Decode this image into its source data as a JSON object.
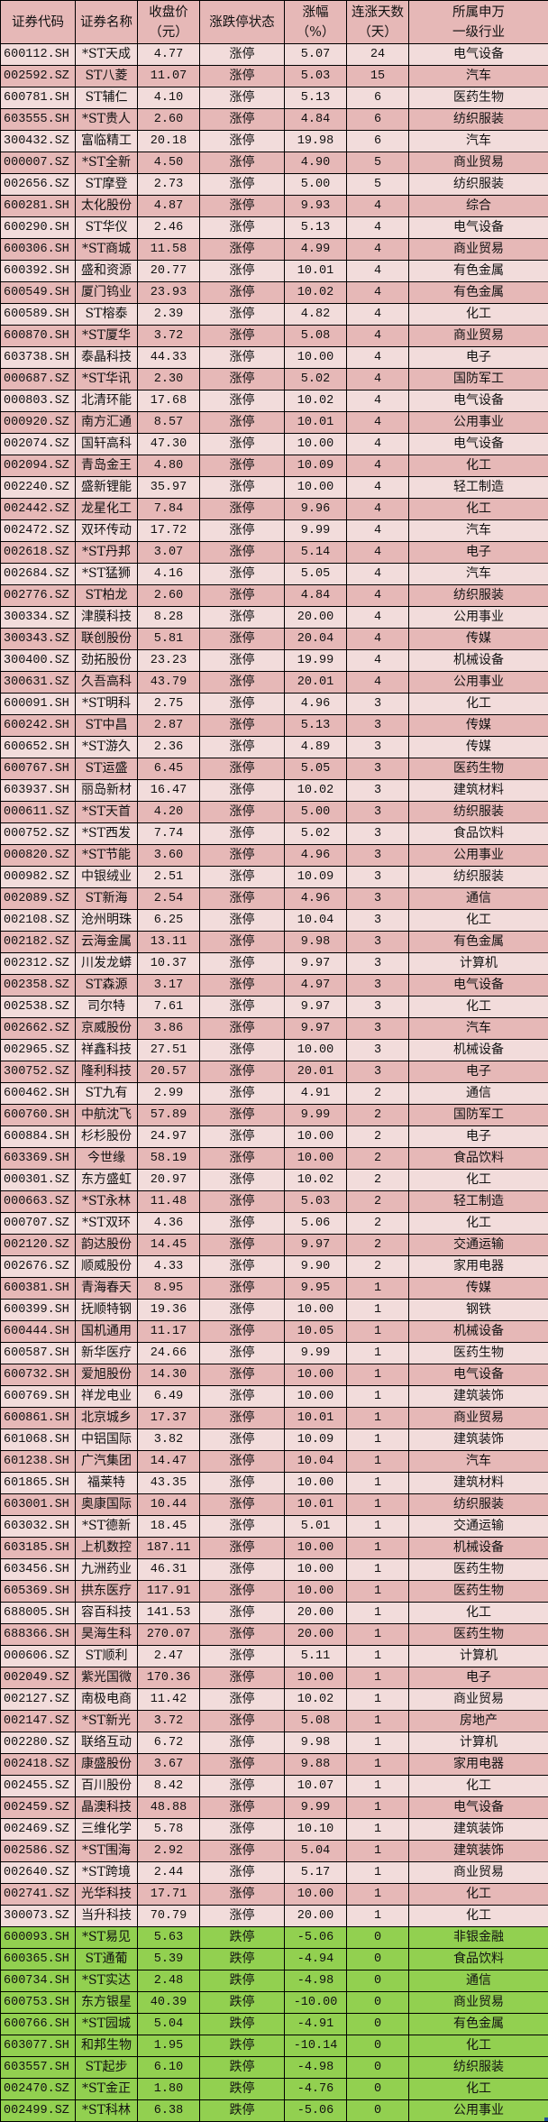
{
  "colors": {
    "header_bg": "#e6b8b7",
    "row_light": "#f2dcdb",
    "row_dark": "#e6b8b7",
    "limit_down": "#92d050"
  },
  "table": {
    "headers": [
      [
        "证券代码"
      ],
      [
        "证券名称"
      ],
      [
        "收盘价",
        "（元）"
      ],
      [
        "涨跌停状态"
      ],
      [
        "涨幅",
        "（%）"
      ],
      [
        "连涨天数",
        "（天）"
      ],
      [
        "所属申万",
        "一级行业"
      ]
    ],
    "rows": [
      [
        "600112.SH",
        "*ST天成",
        "4.77",
        "涨停",
        "5.07",
        "24",
        "电气设备"
      ],
      [
        "002592.SZ",
        "ST八菱",
        "11.07",
        "涨停",
        "5.03",
        "15",
        "汽车"
      ],
      [
        "600781.SH",
        "ST辅仁",
        "4.10",
        "涨停",
        "5.13",
        "6",
        "医药生物"
      ],
      [
        "603555.SH",
        "*ST贵人",
        "2.60",
        "涨停",
        "4.84",
        "6",
        "纺织服装"
      ],
      [
        "300432.SZ",
        "富临精工",
        "20.18",
        "涨停",
        "19.98",
        "6",
        "汽车"
      ],
      [
        "000007.SZ",
        "*ST全新",
        "4.50",
        "涨停",
        "4.90",
        "5",
        "商业贸易"
      ],
      [
        "002656.SZ",
        "ST摩登",
        "2.73",
        "涨停",
        "5.00",
        "5",
        "纺织服装"
      ],
      [
        "600281.SH",
        "太化股份",
        "4.87",
        "涨停",
        "9.93",
        "4",
        "综合"
      ],
      [
        "600290.SH",
        "ST华仪",
        "2.46",
        "涨停",
        "5.13",
        "4",
        "电气设备"
      ],
      [
        "600306.SH",
        "*ST商城",
        "11.58",
        "涨停",
        "4.99",
        "4",
        "商业贸易"
      ],
      [
        "600392.SH",
        "盛和资源",
        "20.77",
        "涨停",
        "10.01",
        "4",
        "有色金属"
      ],
      [
        "600549.SH",
        "厦门钨业",
        "23.93",
        "涨停",
        "10.02",
        "4",
        "有色金属"
      ],
      [
        "600589.SH",
        "ST榕泰",
        "2.39",
        "涨停",
        "4.82",
        "4",
        "化工"
      ],
      [
        "600870.SH",
        "*ST厦华",
        "3.72",
        "涨停",
        "5.08",
        "4",
        "商业贸易"
      ],
      [
        "603738.SH",
        "泰晶科技",
        "44.33",
        "涨停",
        "10.00",
        "4",
        "电子"
      ],
      [
        "000687.SZ",
        "*ST华讯",
        "2.30",
        "涨停",
        "5.02",
        "4",
        "国防军工"
      ],
      [
        "000803.SZ",
        "北清环能",
        "17.68",
        "涨停",
        "10.02",
        "4",
        "电气设备"
      ],
      [
        "000920.SZ",
        "南方汇通",
        "8.57",
        "涨停",
        "10.01",
        "4",
        "公用事业"
      ],
      [
        "002074.SZ",
        "国轩高科",
        "47.30",
        "涨停",
        "10.00",
        "4",
        "电气设备"
      ],
      [
        "002094.SZ",
        "青岛金王",
        "4.80",
        "涨停",
        "10.09",
        "4",
        "化工"
      ],
      [
        "002240.SZ",
        "盛新锂能",
        "35.97",
        "涨停",
        "10.00",
        "4",
        "轻工制造"
      ],
      [
        "002442.SZ",
        "龙星化工",
        "7.84",
        "涨停",
        "9.96",
        "4",
        "化工"
      ],
      [
        "002472.SZ",
        "双环传动",
        "17.72",
        "涨停",
        "9.99",
        "4",
        "汽车"
      ],
      [
        "002618.SZ",
        "*ST丹邦",
        "3.07",
        "涨停",
        "5.14",
        "4",
        "电子"
      ],
      [
        "002684.SZ",
        "*ST猛狮",
        "4.16",
        "涨停",
        "5.05",
        "4",
        "汽车"
      ],
      [
        "002776.SZ",
        "ST柏龙",
        "2.60",
        "涨停",
        "4.84",
        "4",
        "纺织服装"
      ],
      [
        "300334.SZ",
        "津膜科技",
        "8.28",
        "涨停",
        "20.00",
        "4",
        "公用事业"
      ],
      [
        "300343.SZ",
        "联创股份",
        "5.81",
        "涨停",
        "20.04",
        "4",
        "传媒"
      ],
      [
        "300400.SZ",
        "劲拓股份",
        "23.23",
        "涨停",
        "19.99",
        "4",
        "机械设备"
      ],
      [
        "300631.SZ",
        "久吾高科",
        "43.79",
        "涨停",
        "20.01",
        "4",
        "公用事业"
      ],
      [
        "600091.SH",
        "*ST明科",
        "2.75",
        "涨停",
        "4.96",
        "3",
        "化工"
      ],
      [
        "600242.SH",
        "ST中昌",
        "2.87",
        "涨停",
        "5.13",
        "3",
        "传媒"
      ],
      [
        "600652.SH",
        "*ST游久",
        "2.36",
        "涨停",
        "4.89",
        "3",
        "传媒"
      ],
      [
        "600767.SH",
        "ST运盛",
        "6.45",
        "涨停",
        "5.05",
        "3",
        "医药生物"
      ],
      [
        "603937.SH",
        "丽岛新材",
        "16.47",
        "涨停",
        "10.02",
        "3",
        "建筑材料"
      ],
      [
        "000611.SZ",
        "*ST天首",
        "4.20",
        "涨停",
        "5.00",
        "3",
        "纺织服装"
      ],
      [
        "000752.SZ",
        "*ST西发",
        "7.74",
        "涨停",
        "5.02",
        "3",
        "食品饮料"
      ],
      [
        "000820.SZ",
        "*ST节能",
        "3.60",
        "涨停",
        "4.96",
        "3",
        "公用事业"
      ],
      [
        "000982.SZ",
        "中银绒业",
        "2.51",
        "涨停",
        "10.09",
        "3",
        "纺织服装"
      ],
      [
        "002089.SZ",
        "ST新海",
        "2.54",
        "涨停",
        "4.96",
        "3",
        "通信"
      ],
      [
        "002108.SZ",
        "沧州明珠",
        "6.25",
        "涨停",
        "10.04",
        "3",
        "化工"
      ],
      [
        "002182.SZ",
        "云海金属",
        "13.11",
        "涨停",
        "9.98",
        "3",
        "有色金属"
      ],
      [
        "002312.SZ",
        "川发龙蟒",
        "10.37",
        "涨停",
        "9.97",
        "3",
        "计算机"
      ],
      [
        "002358.SZ",
        "ST森源",
        "3.17",
        "涨停",
        "4.97",
        "3",
        "电气设备"
      ],
      [
        "002538.SZ",
        "司尔特",
        "7.61",
        "涨停",
        "9.97",
        "3",
        "化工"
      ],
      [
        "002662.SZ",
        "京威股份",
        "3.86",
        "涨停",
        "9.97",
        "3",
        "汽车"
      ],
      [
        "002965.SZ",
        "祥鑫科技",
        "27.51",
        "涨停",
        "10.00",
        "3",
        "机械设备"
      ],
      [
        "300752.SZ",
        "隆利科技",
        "20.57",
        "涨停",
        "20.01",
        "3",
        "电子"
      ],
      [
        "600462.SH",
        "ST九有",
        "2.99",
        "涨停",
        "4.91",
        "2",
        "通信"
      ],
      [
        "600760.SH",
        "中航沈飞",
        "57.89",
        "涨停",
        "9.99",
        "2",
        "国防军工"
      ],
      [
        "600884.SH",
        "杉杉股份",
        "24.97",
        "涨停",
        "10.00",
        "2",
        "电子"
      ],
      [
        "603369.SH",
        "今世缘",
        "58.19",
        "涨停",
        "10.00",
        "2",
        "食品饮料"
      ],
      [
        "000301.SZ",
        "东方盛虹",
        "20.97",
        "涨停",
        "10.02",
        "2",
        "化工"
      ],
      [
        "000663.SZ",
        "*ST永林",
        "11.48",
        "涨停",
        "5.03",
        "2",
        "轻工制造"
      ],
      [
        "000707.SZ",
        "*ST双环",
        "4.36",
        "涨停",
        "5.06",
        "2",
        "化工"
      ],
      [
        "002120.SZ",
        "韵达股份",
        "14.45",
        "涨停",
        "9.97",
        "2",
        "交通运输"
      ],
      [
        "002676.SZ",
        "顺威股份",
        "4.33",
        "涨停",
        "9.90",
        "2",
        "家用电器"
      ],
      [
        "600381.SH",
        "青海春天",
        "8.95",
        "涨停",
        "9.95",
        "1",
        "传媒"
      ],
      [
        "600399.SH",
        "抚顺特钢",
        "19.36",
        "涨停",
        "10.00",
        "1",
        "钢铁"
      ],
      [
        "600444.SH",
        "国机通用",
        "11.17",
        "涨停",
        "10.05",
        "1",
        "机械设备"
      ],
      [
        "600587.SH",
        "新华医疗",
        "24.66",
        "涨停",
        "9.99",
        "1",
        "医药生物"
      ],
      [
        "600732.SH",
        "爱旭股份",
        "14.30",
        "涨停",
        "10.00",
        "1",
        "电气设备"
      ],
      [
        "600769.SH",
        "祥龙电业",
        "6.49",
        "涨停",
        "10.00",
        "1",
        "建筑装饰"
      ],
      [
        "600861.SH",
        "北京城乡",
        "17.37",
        "涨停",
        "10.01",
        "1",
        "商业贸易"
      ],
      [
        "601068.SH",
        "中铝国际",
        "3.82",
        "涨停",
        "10.09",
        "1",
        "建筑装饰"
      ],
      [
        "601238.SH",
        "广汽集团",
        "14.47",
        "涨停",
        "10.04",
        "1",
        "汽车"
      ],
      [
        "601865.SH",
        "福莱特",
        "43.35",
        "涨停",
        "10.00",
        "1",
        "建筑材料"
      ],
      [
        "603001.SH",
        "奥康国际",
        "10.44",
        "涨停",
        "10.01",
        "1",
        "纺织服装"
      ],
      [
        "603032.SH",
        "*ST德新",
        "18.45",
        "涨停",
        "5.01",
        "1",
        "交通运输"
      ],
      [
        "603185.SH",
        "上机数控",
        "187.11",
        "涨停",
        "10.00",
        "1",
        "机械设备"
      ],
      [
        "603456.SH",
        "九洲药业",
        "46.31",
        "涨停",
        "10.00",
        "1",
        "医药生物"
      ],
      [
        "605369.SH",
        "拱东医疗",
        "117.91",
        "涨停",
        "10.00",
        "1",
        "医药生物"
      ],
      [
        "688005.SH",
        "容百科技",
        "141.53",
        "涨停",
        "20.00",
        "1",
        "化工"
      ],
      [
        "688366.SH",
        "昊海生科",
        "270.07",
        "涨停",
        "20.00",
        "1",
        "医药生物"
      ],
      [
        "000606.SZ",
        "ST顺利",
        "2.47",
        "涨停",
        "5.11",
        "1",
        "计算机"
      ],
      [
        "002049.SZ",
        "紫光国微",
        "170.36",
        "涨停",
        "10.00",
        "1",
        "电子"
      ],
      [
        "002127.SZ",
        "南极电商",
        "11.42",
        "涨停",
        "10.02",
        "1",
        "商业贸易"
      ],
      [
        "002147.SZ",
        "*ST新光",
        "3.72",
        "涨停",
        "5.08",
        "1",
        "房地产"
      ],
      [
        "002280.SZ",
        "联络互动",
        "6.72",
        "涨停",
        "9.98",
        "1",
        "计算机"
      ],
      [
        "002418.SZ",
        "康盛股份",
        "3.67",
        "涨停",
        "9.88",
        "1",
        "家用电器"
      ],
      [
        "002455.SZ",
        "百川股份",
        "8.42",
        "涨停",
        "10.07",
        "1",
        "化工"
      ],
      [
        "002459.SZ",
        "晶澳科技",
        "48.88",
        "涨停",
        "9.99",
        "1",
        "电气设备"
      ],
      [
        "002469.SZ",
        "三维化学",
        "5.78",
        "涨停",
        "10.10",
        "1",
        "建筑装饰"
      ],
      [
        "002586.SZ",
        "*ST围海",
        "2.92",
        "涨停",
        "5.04",
        "1",
        "建筑装饰"
      ],
      [
        "002640.SZ",
        "*ST跨境",
        "2.44",
        "涨停",
        "5.17",
        "1",
        "商业贸易"
      ],
      [
        "002741.SZ",
        "光华科技",
        "17.71",
        "涨停",
        "10.00",
        "1",
        "化工"
      ],
      [
        "300073.SZ",
        "当升科技",
        "70.79",
        "涨停",
        "20.00",
        "1",
        "化工"
      ],
      [
        "600093.SH",
        "*ST易见",
        "5.63",
        "跌停",
        "-5.06",
        "0",
        "非银金融"
      ],
      [
        "600365.SH",
        "ST通葡",
        "5.39",
        "跌停",
        "-4.94",
        "0",
        "食品饮料"
      ],
      [
        "600734.SH",
        "*ST实达",
        "2.48",
        "跌停",
        "-4.98",
        "0",
        "通信"
      ],
      [
        "600753.SH",
        "东方银星",
        "40.39",
        "跌停",
        "-10.00",
        "0",
        "商业贸易"
      ],
      [
        "600766.SH",
        "*ST园城",
        "5.04",
        "跌停",
        "-4.91",
        "0",
        "有色金属"
      ],
      [
        "603077.SH",
        "和邦生物",
        "1.95",
        "跌停",
        "-10.14",
        "0",
        "化工"
      ],
      [
        "603557.SH",
        "ST起步",
        "6.10",
        "跌停",
        "-4.98",
        "0",
        "纺织服装"
      ],
      [
        "002470.SZ",
        "*ST金正",
        "1.80",
        "跌停",
        "-4.76",
        "0",
        "化工"
      ],
      [
        "002499.SZ",
        "*ST科林",
        "6.38",
        "跌停",
        "-5.06",
        "0",
        "公用事业"
      ]
    ]
  }
}
